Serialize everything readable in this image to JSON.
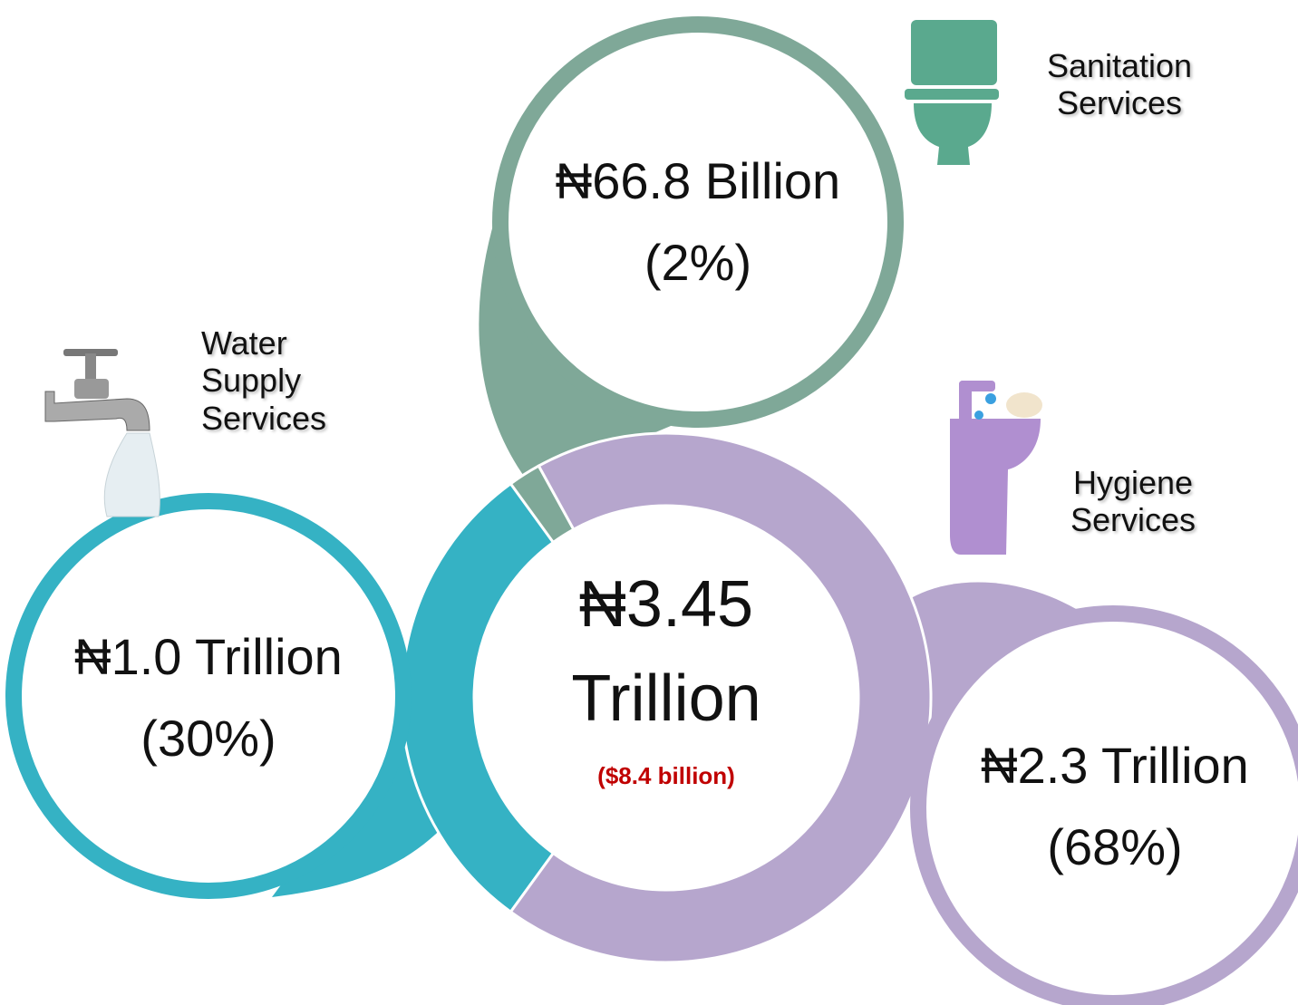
{
  "chart_data": {
    "type": "donut",
    "categories": [
      "Water Supply Services",
      "Sanitation Services",
      "Hygiene Services"
    ],
    "values": [
      30,
      2,
      68
    ],
    "value_labels": [
      "(30%)",
      "(2%)",
      "(68%)"
    ],
    "amounts": [
      "₦1.0 Trillion",
      "₦66.8 Billion",
      "₦2.3 Trillion"
    ],
    "colors": [
      "#35b2c4",
      "#7fa898",
      "#b6a6cd"
    ],
    "total": "₦3.45 Trillion",
    "total_usd": "($8.4 billion)"
  }
}
